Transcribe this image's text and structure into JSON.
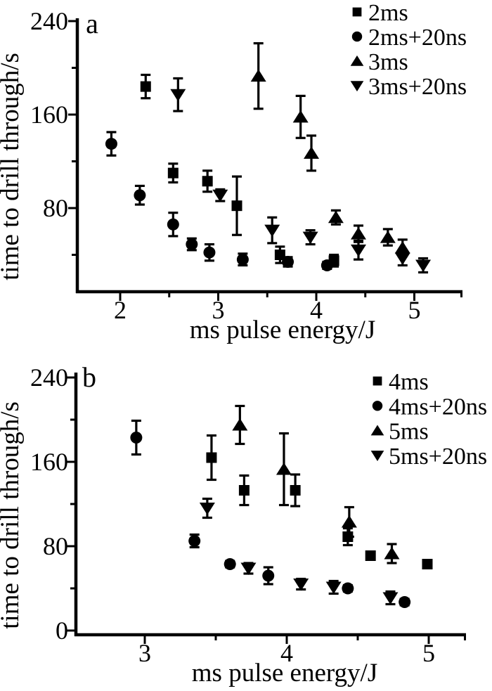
{
  "page": {
    "background": "#ffffff",
    "ink": "#000000"
  },
  "chart_data": [
    {
      "id": "a",
      "type": "scatter",
      "panel_label": "a",
      "xlabel": "ms pulse energy/J",
      "ylabel": "time to drill through/s",
      "xlim": [
        1.55,
        5.49
      ],
      "ylim": [
        9,
        242
      ],
      "x_major_ticks": [
        2,
        3,
        4,
        5
      ],
      "x_minor_ticks": [
        2.5,
        3.5,
        4.5
      ],
      "y_major_ticks": [
        80,
        160,
        240
      ],
      "y_minor_ticks": [
        40,
        120,
        200
      ],
      "grid": false,
      "legend_position": "top-right",
      "error_bars": true,
      "series": [
        {
          "name": "2ms",
          "marker": "square",
          "points": [
            [
              2.26,
              184,
              10
            ],
            [
              2.54,
              110,
              8
            ],
            [
              2.89,
              103,
              9
            ],
            [
              3.19,
              82,
              25
            ],
            [
              3.63,
              40,
              7
            ],
            [
              4.18,
              35,
              5
            ]
          ]
        },
        {
          "name": "2ms+20ns",
          "marker": "circle",
          "points": [
            [
              1.91,
              135,
              10
            ],
            [
              2.2,
              91,
              8
            ],
            [
              2.54,
              66,
              10
            ],
            [
              2.73,
              49,
              5
            ],
            [
              2.91,
              42,
              7
            ],
            [
              3.25,
              36,
              5
            ],
            [
              3.71,
              34,
              4
            ],
            [
              4.11,
              31,
              3
            ]
          ]
        },
        {
          "name": "3ms",
          "marker": "triangle-up",
          "points": [
            [
              3.41,
              193,
              28
            ],
            [
              3.84,
              158,
              18
            ],
            [
              3.95,
              127,
              15
            ],
            [
              4.2,
              72,
              6
            ],
            [
              4.43,
              58,
              7
            ],
            [
              4.73,
              55,
              7
            ],
            [
              4.88,
              46,
              7
            ]
          ]
        },
        {
          "name": "3ms+20ns",
          "marker": "triangle-down",
          "points": [
            [
              2.59,
              177,
              14
            ],
            [
              3.02,
              91,
              5
            ],
            [
              3.55,
              61,
              11
            ],
            [
              3.94,
              55,
              6
            ],
            [
              4.43,
              44,
              8
            ],
            [
              4.88,
              37,
              6
            ],
            [
              5.09,
              31,
              6
            ]
          ]
        }
      ]
    },
    {
      "id": "b",
      "type": "scatter",
      "panel_label": "b",
      "xlabel": "ms pulse energy/J",
      "ylabel": "time to drill through/s",
      "xlim": [
        2.51,
        5.26
      ],
      "ylim": [
        0,
        245
      ],
      "x_major_ticks": [
        3,
        4,
        5
      ],
      "x_minor_ticks": [
        3.5,
        4.5
      ],
      "y_major_ticks": [
        0,
        80,
        160,
        240
      ],
      "y_minor_ticks": [
        40,
        120,
        200
      ],
      "grid": false,
      "legend_position": "top-right",
      "error_bars": true,
      "series": [
        {
          "name": "4ms",
          "marker": "square",
          "points": [
            [
              3.47,
              164,
              21
            ],
            [
              3.7,
              133,
              14
            ],
            [
              4.06,
              133,
              15
            ],
            [
              4.43,
              89,
              8
            ],
            [
              4.59,
              71,
              3
            ],
            [
              4.99,
              63,
              3
            ]
          ]
        },
        {
          "name": "4ms+20ns",
          "marker": "circle",
          "points": [
            [
              2.94,
              183,
              16
            ],
            [
              3.35,
              85,
              6
            ],
            [
              3.6,
              63,
              3
            ],
            [
              3.87,
              52,
              8
            ],
            [
              4.43,
              40,
              3
            ],
            [
              4.83,
              27,
              3
            ]
          ]
        },
        {
          "name": "5ms",
          "marker": "triangle-up",
          "points": [
            [
              3.67,
              195,
              18
            ],
            [
              3.98,
              153,
              34
            ],
            [
              4.44,
              103,
              14
            ],
            [
              4.74,
              73,
              9
            ]
          ]
        },
        {
          "name": "5ms+20ns",
          "marker": "triangle-down",
          "points": [
            [
              3.44,
              116,
              9
            ],
            [
              3.73,
              59,
              5
            ],
            [
              4.1,
              44,
              5
            ],
            [
              4.33,
              41,
              6
            ],
            [
              4.73,
              31,
              6
            ]
          ]
        }
      ]
    }
  ]
}
